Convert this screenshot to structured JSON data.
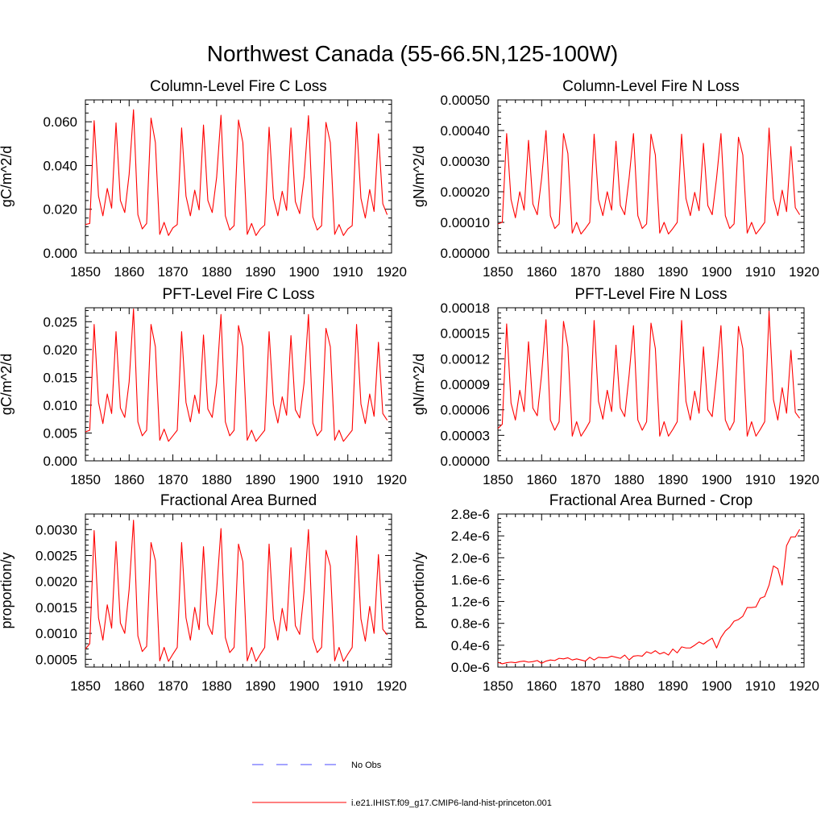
{
  "figure_title": "Northwest Canada (55-66.5N,125-100W)",
  "legend": [
    {
      "label": "No Obs",
      "color": "#4a4aff",
      "dash": true
    },
    {
      "label": "i.e21.IHIST.f09_g17.CMIP6-land-hist-princeton.001",
      "color": "#ff0000",
      "dash": false
    }
  ],
  "chart_data": [
    {
      "type": "line",
      "title": "Column-Level Fire C Loss",
      "xlabel": "",
      "ylabel": "gC/m^2/d",
      "xlim": [
        1850,
        1920
      ],
      "ylim": [
        0,
        0.07
      ],
      "xticks": [
        1850,
        1860,
        1870,
        1880,
        1890,
        1900,
        1910,
        1920
      ],
      "xtick_labels": [
        "1850",
        "1860",
        "1870",
        "1880",
        "1890",
        "1900",
        "1910",
        "1920"
      ],
      "yticks": [
        0,
        0.02,
        0.04,
        0.06
      ],
      "ytick_labels": [
        "0.000",
        "0.020",
        "0.040",
        "0.060"
      ],
      "x_start": 1850,
      "series": [
        {
          "color": "#ff0000",
          "values": [
            0.013,
            0.0135,
            0.0605,
            0.026,
            0.017,
            0.0295,
            0.0205,
            0.0595,
            0.024,
            0.0185,
            0.036,
            0.0655,
            0.0175,
            0.011,
            0.0135,
            0.0617,
            0.0505,
            0.0085,
            0.014,
            0.008,
            0.0115,
            0.013,
            0.0572,
            0.026,
            0.017,
            0.0287,
            0.0197,
            0.0585,
            0.024,
            0.0185,
            0.0345,
            0.063,
            0.017,
            0.0105,
            0.0125,
            0.0608,
            0.0505,
            0.0085,
            0.0135,
            0.008,
            0.011,
            0.0128,
            0.0575,
            0.025,
            0.017,
            0.0282,
            0.0195,
            0.0572,
            0.0235,
            0.018,
            0.0345,
            0.0628,
            0.0165,
            0.0105,
            0.0125,
            0.0597,
            0.0505,
            0.0085,
            0.013,
            0.008,
            0.011,
            0.0125,
            0.0598,
            0.025,
            0.016,
            0.029,
            0.019,
            0.0545,
            0.0225,
            0.0175
          ]
        }
      ]
    },
    {
      "type": "line",
      "title": "Column-Level Fire N Loss",
      "xlabel": "",
      "ylabel": "gN/m^2/d",
      "xlim": [
        1850,
        1920
      ],
      "ylim": [
        0,
        0.0005
      ],
      "xticks": [
        1850,
        1860,
        1870,
        1880,
        1890,
        1900,
        1910,
        1920
      ],
      "xtick_labels": [
        "1850",
        "1860",
        "1870",
        "1880",
        "1890",
        "1900",
        "1910",
        "1920"
      ],
      "yticks": [
        0,
        0.0001,
        0.0002,
        0.0003,
        0.0004,
        0.0005
      ],
      "ytick_labels": [
        "0.00000",
        "0.00010",
        "0.00020",
        "0.00030",
        "0.00040",
        "0.00050"
      ],
      "x_start": 1850,
      "series": [
        {
          "color": "#ff0000",
          "values": [
            9.5e-05,
            0.0001,
            0.00039,
            0.000175,
            0.000115,
            0.0002,
            0.00014,
            0.000368,
            0.00016,
            0.000125,
            0.000245,
            0.0004,
            0.000122,
            8e-05,
            9.5e-05,
            0.00039,
            0.000325,
            6.5e-05,
            0.0001,
            6.2e-05,
            8e-05,
            0.0001,
            0.000388,
            0.000175,
            0.000122,
            0.0002,
            0.00014,
            0.000365,
            0.000155,
            0.000125,
            0.000245,
            0.00039,
            0.000122,
            8e-05,
            9.5e-05,
            0.000388,
            0.00032,
            6.5e-05,
            0.0001,
            6.2e-05,
            8e-05,
            0.0001,
            0.000388,
            0.000178,
            0.000122,
            0.000198,
            0.000138,
            0.000358,
            0.000155,
            0.000125,
            0.000245,
            0.00039,
            0.000122,
            8e-05,
            9.5e-05,
            0.000378,
            0.00032,
            6.5e-05,
            0.0001,
            6.2e-05,
            8e-05,
            0.0001,
            0.000408,
            0.000178,
            0.000122,
            0.000205,
            0.000135,
            0.000348,
            0.000148,
            0.000125
          ]
        }
      ]
    },
    {
      "type": "line",
      "title": "PFT-Level Fire C Loss",
      "xlabel": "",
      "ylabel": "gC/m^2/d",
      "xlim": [
        1850,
        1920
      ],
      "ylim": [
        0,
        0.0275
      ],
      "xticks": [
        1850,
        1860,
        1870,
        1880,
        1890,
        1900,
        1910,
        1920
      ],
      "xtick_labels": [
        "1850",
        "1860",
        "1870",
        "1880",
        "1890",
        "1900",
        "1910",
        "1920"
      ],
      "yticks": [
        0,
        0.005,
        0.01,
        0.015,
        0.02,
        0.025
      ],
      "ytick_labels": [
        "0.000",
        "0.005",
        "0.010",
        "0.015",
        "0.020",
        "0.025"
      ],
      "x_start": 1850,
      "series": [
        {
          "color": "#ff0000",
          "values": [
            0.0052,
            0.0055,
            0.0245,
            0.0105,
            0.0067,
            0.012,
            0.0085,
            0.0232,
            0.0095,
            0.0078,
            0.0142,
            0.0273,
            0.007,
            0.0045,
            0.0055,
            0.0245,
            0.0205,
            0.0037,
            0.0057,
            0.0035,
            0.0045,
            0.0055,
            0.0232,
            0.0105,
            0.007,
            0.0118,
            0.0085,
            0.0226,
            0.0093,
            0.0078,
            0.014,
            0.0263,
            0.007,
            0.0045,
            0.0055,
            0.0243,
            0.0205,
            0.0037,
            0.0055,
            0.0035,
            0.0045,
            0.0055,
            0.0232,
            0.0102,
            0.0068,
            0.0115,
            0.0082,
            0.0225,
            0.0092,
            0.0077,
            0.014,
            0.0263,
            0.0068,
            0.0045,
            0.0055,
            0.0238,
            0.0205,
            0.0037,
            0.0055,
            0.0035,
            0.0045,
            0.0055,
            0.0245,
            0.0102,
            0.0067,
            0.012,
            0.008,
            0.0213,
            0.0085,
            0.0073
          ]
        }
      ]
    },
    {
      "type": "line",
      "title": "PFT-Level Fire N Loss",
      "xlabel": "",
      "ylabel": "gN/m^2/d",
      "xlim": [
        1850,
        1920
      ],
      "ylim": [
        0,
        0.00018
      ],
      "xticks": [
        1850,
        1860,
        1870,
        1880,
        1890,
        1900,
        1910,
        1920
      ],
      "xtick_labels": [
        "1850",
        "1860",
        "1870",
        "1880",
        "1890",
        "1900",
        "1910",
        "1920"
      ],
      "yticks": [
        0,
        3e-05,
        6e-05,
        9e-05,
        0.00012,
        0.00015,
        0.00018
      ],
      "ytick_labels": [
        "0.00000",
        "0.00003",
        "0.00006",
        "0.00009",
        "0.00012",
        "0.00015",
        "0.00018"
      ],
      "x_start": 1850,
      "series": [
        {
          "color": "#ff0000",
          "values": [
            3.8e-05,
            4.3e-05,
            0.000161,
            6.8e-05,
            4.8e-05,
            8.3e-05,
            5.8e-05,
            0.00014,
            6.2e-05,
            5.3e-05,
            0.000102,
            0.000166,
            4.8e-05,
            3.6e-05,
            4.6e-05,
            0.000164,
            0.000134,
            2.9e-05,
            4.6e-05,
            2.9e-05,
            3.7e-05,
            4.6e-05,
            0.000165,
            7e-05,
            4.9e-05,
            8.3e-05,
            5.8e-05,
            0.000136,
            6.2e-05,
            5.2e-05,
            0.000101,
            0.000159,
            4.8e-05,
            3.6e-05,
            4.6e-05,
            0.000162,
            0.000132,
            2.9e-05,
            4.6e-05,
            2.9e-05,
            3.7e-05,
            4.6e-05,
            0.000165,
            7e-05,
            4.8e-05,
            8.2e-05,
            5.6e-05,
            0.000134,
            6e-05,
            5.2e-05,
            0.000101,
            0.000159,
            4.8e-05,
            3.6e-05,
            4.6e-05,
            0.000158,
            0.000132,
            2.9e-05,
            4.6e-05,
            2.9e-05,
            3.7e-05,
            4.6e-05,
            0.000176,
            7.2e-05,
            4.8e-05,
            8.6e-05,
            5.6e-05,
            0.00013,
            5.7e-05,
            5e-05
          ]
        }
      ]
    },
    {
      "type": "line",
      "title": "Fractional Area Burned",
      "xlabel": "",
      "ylabel": "proportion/y",
      "xlim": [
        1850,
        1920
      ],
      "ylim": [
        0.00035,
        0.0033
      ],
      "xticks": [
        1850,
        1860,
        1870,
        1880,
        1890,
        1900,
        1910,
        1920
      ],
      "xtick_labels": [
        "1850",
        "1860",
        "1870",
        "1880",
        "1890",
        "1900",
        "1910",
        "1920"
      ],
      "yticks": [
        0.0005,
        0.001,
        0.0015,
        0.002,
        0.0025,
        0.003
      ],
      "ytick_labels": [
        "0.0005",
        "0.0010",
        "0.0015",
        "0.0020",
        "0.0025",
        "0.0030"
      ],
      "x_start": 1850,
      "series": [
        {
          "color": "#ff0000",
          "values": [
            0.0007,
            0.0008,
            0.00298,
            0.0013,
            0.00087,
            0.00155,
            0.0011,
            0.00277,
            0.0012,
            0.001,
            0.00185,
            0.00318,
            0.00095,
            0.00065,
            0.00075,
            0.00275,
            0.0024,
            0.00047,
            0.00073,
            0.00046,
            0.0006,
            0.00073,
            0.00275,
            0.0013,
            0.00087,
            0.0015,
            0.00107,
            0.00267,
            0.00117,
            0.00098,
            0.00182,
            0.00302,
            0.00092,
            0.00063,
            0.00073,
            0.00272,
            0.00238,
            0.00047,
            0.00073,
            0.00046,
            0.0006,
            0.00073,
            0.00272,
            0.00128,
            0.00087,
            0.00148,
            0.00105,
            0.00265,
            0.00115,
            0.00098,
            0.0018,
            0.003,
            0.0009,
            0.00063,
            0.00073,
            0.0026,
            0.0023,
            0.00047,
            0.00073,
            0.00046,
            0.0006,
            0.00073,
            0.00288,
            0.00128,
            0.00085,
            0.00152,
            0.001,
            0.00252,
            0.00108,
            0.00097
          ]
        }
      ]
    },
    {
      "type": "line",
      "title": "Fractional Area Burned - Crop",
      "xlabel": "",
      "ylabel": "proportion/y",
      "xlim": [
        1850,
        1920
      ],
      "ylim": [
        0,
        2.8e-06
      ],
      "xticks": [
        1850,
        1860,
        1870,
        1880,
        1890,
        1900,
        1910,
        1920
      ],
      "xtick_labels": [
        "1850",
        "1860",
        "1870",
        "1880",
        "1890",
        "1900",
        "1910",
        "1920"
      ],
      "yticks": [
        0,
        4e-07,
        8e-07,
        1.2e-06,
        1.6e-06,
        2e-06,
        2.4e-06,
        2.8e-06
      ],
      "ytick_labels": [
        "0.0e-6",
        "0.4e-6",
        "0.8e-6",
        "1.2e-6",
        "1.6e-6",
        "2.0e-6",
        "2.4e-6",
        "2.8e-6"
      ],
      "x_start": 1850,
      "series": [
        {
          "color": "#ff0000",
          "values": [
            9e-08,
            6e-08,
            8e-08,
            9e-08,
            8e-08,
            1e-07,
            1.1e-07,
            9e-08,
            1e-07,
            1.2e-07,
            7e-08,
            1.1e-07,
            1.3e-07,
            1.2e-07,
            1.6e-07,
            1.5e-07,
            1.7e-07,
            1.3e-07,
            1.5e-07,
            1.3e-07,
            1.1e-07,
            1.8e-07,
            1.3e-07,
            1.8e-07,
            1.7e-07,
            1.7e-07,
            2e-07,
            1.8e-07,
            1.6e-07,
            2.2e-07,
            1.3e-07,
            2e-07,
            2.1e-07,
            2e-07,
            2.8e-07,
            2.5e-07,
            3e-07,
            2.4e-07,
            2.7e-07,
            2.2e-07,
            3.3e-07,
            2.6e-07,
            3.7e-07,
            3.5e-07,
            3.5e-07,
            4e-07,
            4.6e-07,
            4.2e-07,
            4.8e-07,
            5.3e-07,
            3.5e-07,
            5.4e-07,
            6.6e-07,
            7.3e-07,
            8.4e-07,
            8.7e-07,
            9.3e-07,
            1.09e-06,
            1.09e-06,
            1.1e-06,
            1.26e-06,
            1.29e-06,
            1.5e-06,
            1.85e-06,
            1.8e-06,
            1.5e-06,
            2.22e-06,
            2.38e-06,
            2.38e-06,
            2.52e-06
          ]
        }
      ]
    }
  ]
}
